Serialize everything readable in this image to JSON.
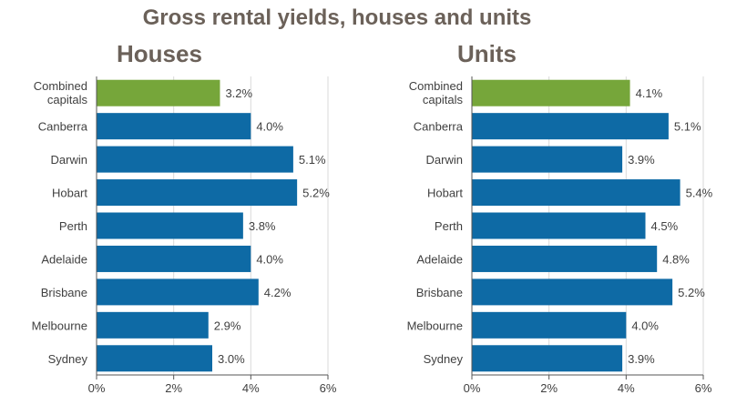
{
  "page_title": "Gross rental yields, houses and units",
  "colors": {
    "highlight": "#76a63a",
    "bar": "#0e6aa5",
    "grid": "#d9d9d9",
    "axis": "#555555",
    "text": "#404040",
    "panel_bg": "#ffffff"
  },
  "chart_data": [
    {
      "type": "bar",
      "orientation": "horizontal",
      "title": "Houses",
      "categories": [
        "Combined capitals",
        "Canberra",
        "Darwin",
        "Hobart",
        "Perth",
        "Adelaide",
        "Brisbane",
        "Melbourne",
        "Sydney"
      ],
      "values": [
        3.2,
        4.0,
        5.1,
        5.2,
        3.8,
        4.0,
        4.2,
        2.9,
        3.0
      ],
      "labels": [
        "3.2%",
        "4.0%",
        "5.1%",
        "5.2%",
        "3.8%",
        "4.0%",
        "4.2%",
        "2.9%",
        "3.0%"
      ],
      "highlight_index": 0,
      "xlim": [
        0,
        6
      ],
      "xticks": [
        0,
        2,
        4,
        6
      ],
      "xtick_labels": [
        "0%",
        "2%",
        "4%",
        "6%"
      ],
      "grid": true
    },
    {
      "type": "bar",
      "orientation": "horizontal",
      "title": "Units",
      "categories": [
        "Combined capitals",
        "Canberra",
        "Darwin",
        "Hobart",
        "Perth",
        "Adelaide",
        "Brisbane",
        "Melbourne",
        "Sydney"
      ],
      "values": [
        4.1,
        5.1,
        3.9,
        5.4,
        4.5,
        4.8,
        5.2,
        4.0,
        3.9
      ],
      "labels": [
        "4.1%",
        "5.1%",
        "3.9%",
        "5.4%",
        "4.5%",
        "4.8%",
        "5.2%",
        "4.0%",
        "3.9%"
      ],
      "highlight_index": 0,
      "xlim": [
        0,
        6
      ],
      "xticks": [
        0,
        2,
        4,
        6
      ],
      "xtick_labels": [
        "0%",
        "2%",
        "4%",
        "6%"
      ],
      "grid": true
    }
  ]
}
